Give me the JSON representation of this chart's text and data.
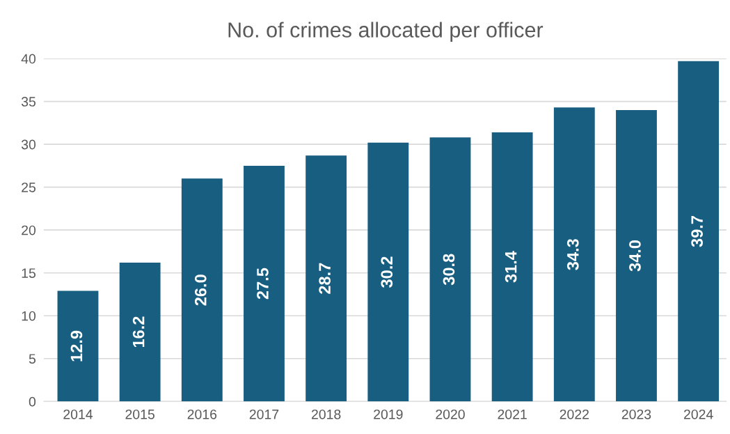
{
  "chart_data": {
    "type": "bar",
    "title": "No. of crimes allocated per officer",
    "categories": [
      "2014",
      "2015",
      "2016",
      "2017",
      "2018",
      "2019",
      "2020",
      "2021",
      "2022",
      "2023",
      "2024"
    ],
    "values": [
      12.9,
      16.2,
      26.0,
      27.5,
      28.7,
      30.2,
      30.8,
      31.4,
      34.3,
      34.0,
      39.7
    ],
    "value_labels": [
      "12.9",
      "16.2",
      "26.0",
      "27.5",
      "28.7",
      "30.2",
      "30.8",
      "31.4",
      "34.3",
      "34.0",
      "39.7"
    ],
    "color": "#185e80",
    "ylim": [
      0,
      40
    ],
    "yticks": [
      0,
      5,
      10,
      15,
      20,
      25,
      30,
      35,
      40
    ],
    "grid": "y",
    "legend": false
  }
}
